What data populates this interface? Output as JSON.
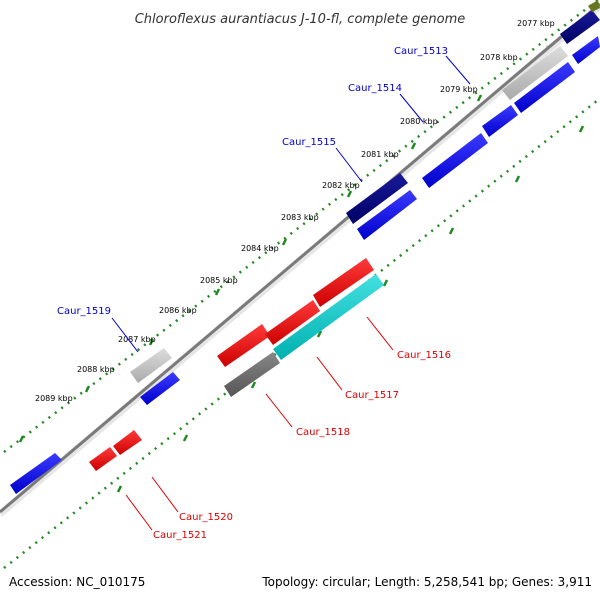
{
  "title": "Chloroflexus aurantiacus J-10-fl, complete genome",
  "footer": {
    "accession": "Accession: NC_010175",
    "summary": "Topology: circular; Length: 5,258,541 bp; Genes: 3,911"
  },
  "colors": {
    "forward_gene": "#0000ee",
    "reverse_gene": "#ee0000",
    "pseudo_gene": "#bbbbbb",
    "dark_gene": "#000077",
    "cyan_gene": "#00cccc",
    "grey_gene": "#666666",
    "backbone": "#888888",
    "tick": "#228822"
  },
  "kbp_labels": [
    "2077 kbp",
    "2078 kbp",
    "2079 kbp",
    "2080 kbp",
    "2081 kbp",
    "2082 kbp",
    "2083 kbp",
    "2084 kbp",
    "2085 kbp",
    "2086 kbp",
    "2087 kbp",
    "2088 kbp",
    "2089 kbp"
  ],
  "gene_labels": [
    "Caur_1513",
    "Caur_1514",
    "Caur_1515",
    "Caur_1519",
    "Caur_1516",
    "Caur_1517",
    "Caur_1518",
    "Caur_1520",
    "Caur_1521"
  ]
}
